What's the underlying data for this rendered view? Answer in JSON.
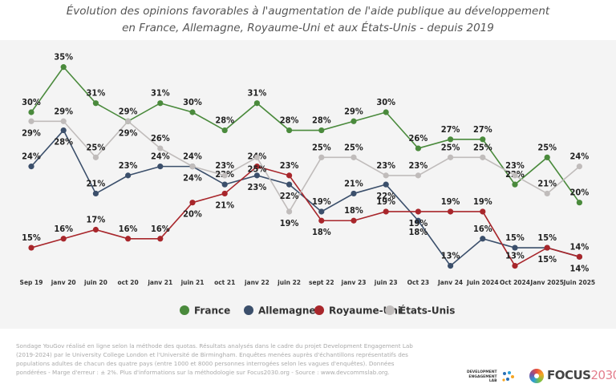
{
  "chart_data": {
    "type": "line",
    "title": "Évolution des opinions favorables à l'augmentation de l'aide publique au développement",
    "subtitle": "en France, Allemagne, Royaume-Uni et aux États-Unis - depuis 2019",
    "categories": [
      "Sep 19",
      "janv 20",
      "juin 20",
      "oct 20",
      "janv 21",
      "juin 21",
      "oct 21",
      "janv 22",
      "juin 22",
      "sept 22",
      "janv 23",
      "juin 23",
      "Oct 23",
      "Janv 24",
      "Juin 2024",
      "Oct 2024",
      "Janv 2025",
      "Juin 2025"
    ],
    "unit": "%",
    "ylim": [
      13,
      35
    ],
    "grid": false,
    "legend_position": "bottom",
    "series": [
      {
        "name": "France",
        "color": "#4a8a3c",
        "values": [
          30,
          35,
          31,
          29,
          31,
          30,
          28,
          31,
          28,
          28,
          29,
          30,
          26,
          27,
          27,
          22,
          25,
          20
        ]
      },
      {
        "name": "Allemagne",
        "color": "#3b4f6b",
        "values": [
          24,
          28,
          21,
          23,
          24,
          24,
          22,
          23,
          22,
          19,
          21,
          22,
          18,
          13,
          16,
          15,
          15,
          14
        ]
      },
      {
        "name": "Royaume-Uni",
        "color": "#a8262b",
        "values": [
          15,
          16,
          17,
          16,
          16,
          20,
          21,
          24,
          23,
          18,
          18,
          19,
          19,
          19,
          19,
          13,
          15,
          14
        ]
      },
      {
        "name": "États-Unis",
        "color": "#c0bcbb",
        "values": [
          29,
          29,
          25,
          29,
          26,
          24,
          23,
          25,
          19,
          25,
          25,
          23,
          23,
          25,
          25,
          23,
          21,
          24
        ]
      }
    ]
  },
  "footer": {
    "note": "Sondage YouGov réalisé en ligne selon la méthode des quotas. Résultats analysés dans le cadre du projet Development Engagement Lab (2019-2024) par le University College London et l'Université de Birmingham. Enquêtes menées auprès d'échantillons représentatifs des populations adultes de chacun des quatre pays (entre 1000 et 8000 personnes interrogées selon les vagues d'enquêtes). Données pondérées - Marge d'erreur : ± 2%. Plus d'informations sur la méthodologie sur Focus2030.org - Source : www.devcommslab.org."
  },
  "logos": {
    "del": "DEVELOPMENT ENGAGEMENT LAB",
    "focus_a": "FOCUS",
    "focus_b": "2030"
  }
}
